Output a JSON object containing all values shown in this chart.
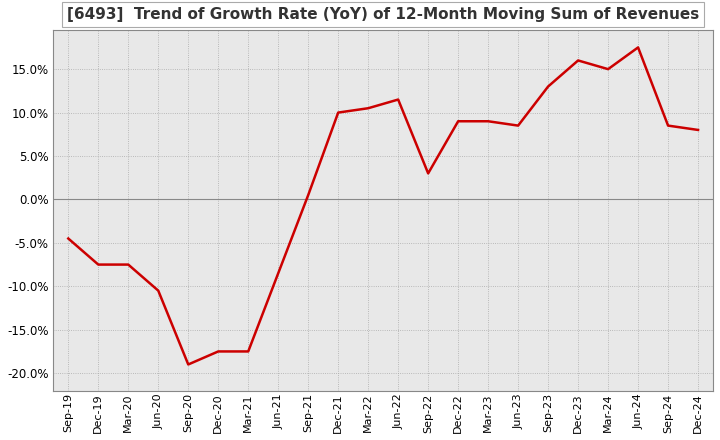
{
  "title": "[6493]  Trend of Growth Rate (YoY) of 12-Month Moving Sum of Revenues",
  "title_fontsize": 11,
  "line_color": "#cc0000",
  "background_color": "#ffffff",
  "grid_color": "#aaaaaa",
  "plot_bg_color": "#e8e8e8",
  "ylim": [
    -0.22,
    0.195
  ],
  "yticks": [
    -0.2,
    -0.15,
    -0.1,
    -0.05,
    0.0,
    0.05,
    0.1,
    0.15
  ],
  "x_labels": [
    "Sep-19",
    "Dec-19",
    "Mar-20",
    "Jun-20",
    "Sep-20",
    "Dec-20",
    "Mar-21",
    "Jun-21",
    "Sep-21",
    "Dec-21",
    "Mar-22",
    "Jun-22",
    "Sep-22",
    "Dec-22",
    "Mar-23",
    "Jun-23",
    "Sep-23",
    "Dec-23",
    "Mar-24",
    "Jun-24",
    "Sep-24",
    "Dec-24"
  ],
  "values": [
    -0.045,
    -0.075,
    -0.075,
    -0.105,
    -0.19,
    -0.175,
    -0.175,
    -0.085,
    0.005,
    0.1,
    0.105,
    0.115,
    0.03,
    0.09,
    0.09,
    0.085,
    0.13,
    0.16,
    0.15,
    0.175,
    0.085,
    0.08
  ]
}
